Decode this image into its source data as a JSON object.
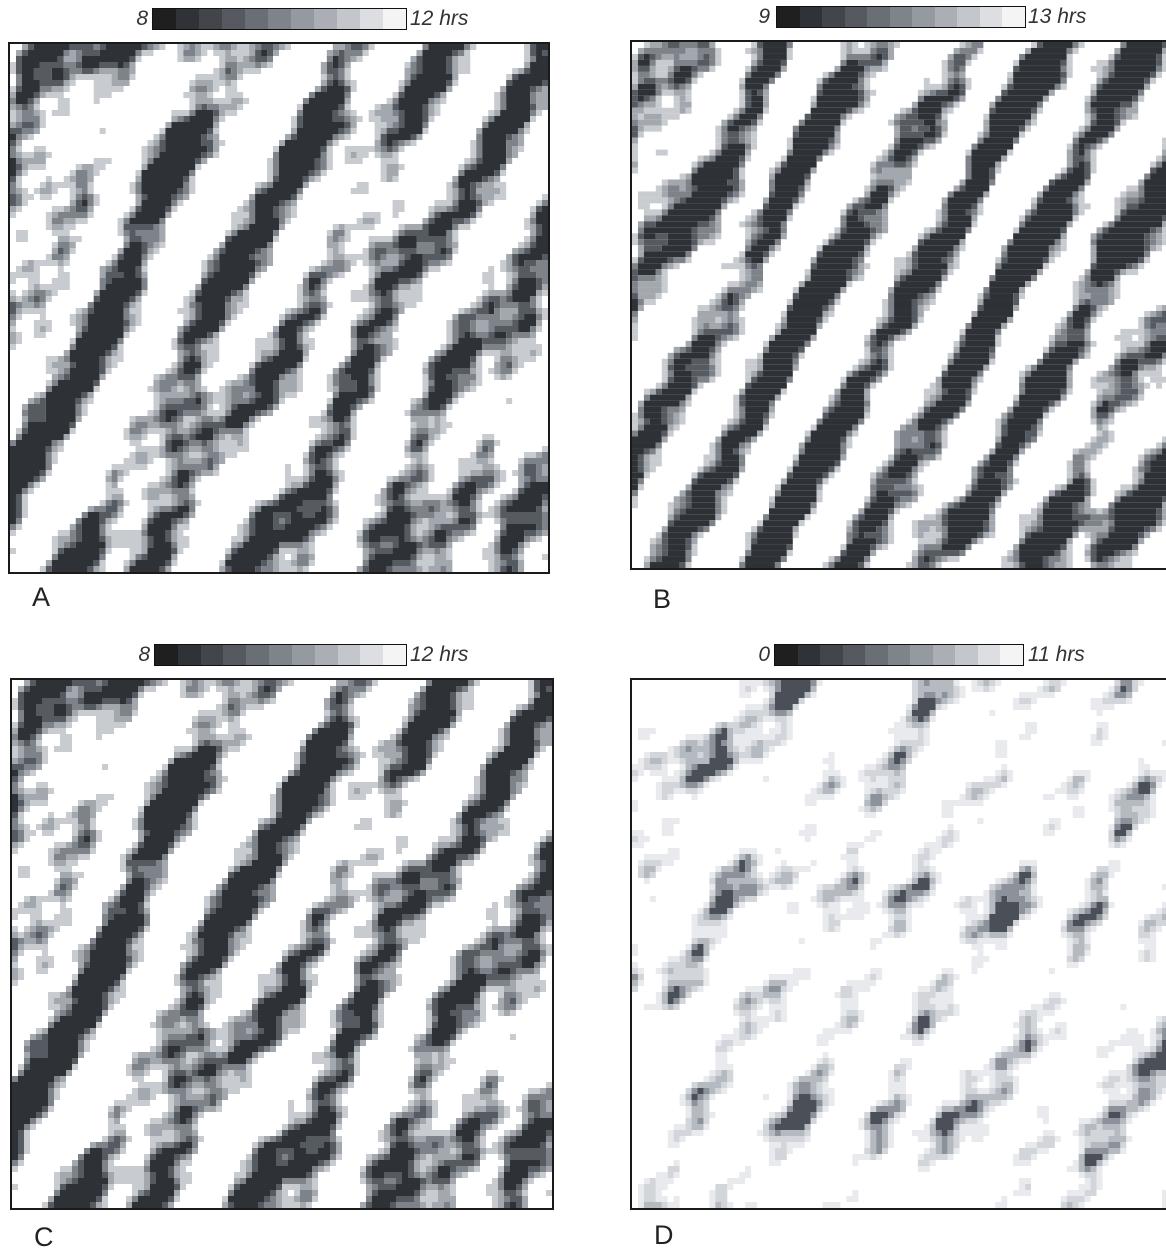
{
  "panels": [
    {
      "label": "A",
      "legend_min": "8",
      "legend_max": "12 hrs",
      "tone": "dark",
      "seed": 11
    },
    {
      "label": "B",
      "legend_min": "9",
      "legend_max": "13 hrs",
      "tone": "dark",
      "seed": 37
    },
    {
      "label": "C",
      "legend_min": "8",
      "legend_max": "12 hrs",
      "tone": "dark",
      "seed": 11
    },
    {
      "label": "D",
      "legend_min": "0",
      "legend_max": "11 hrs",
      "tone": "light",
      "seed": 73
    }
  ],
  "legend_colors": [
    "#1f1f1f",
    "#2f3236",
    "#42464b",
    "#565a60",
    "#6a6e75",
    "#7f838a",
    "#959aa0",
    "#abafb5",
    "#c3c6cb",
    "#dcdee1",
    "#f4f4f5"
  ],
  "map_colors_dark": [
    "#ffffff",
    "#c8cbd0",
    "#a3a8ae",
    "#7e838a",
    "#565b62",
    "#2e3237"
  ],
  "map_colors_light": [
    "#ffffff",
    "#e8eaed",
    "#d2d5da",
    "#b5b9c0",
    "#8c919a",
    "#4a4f58"
  ]
}
